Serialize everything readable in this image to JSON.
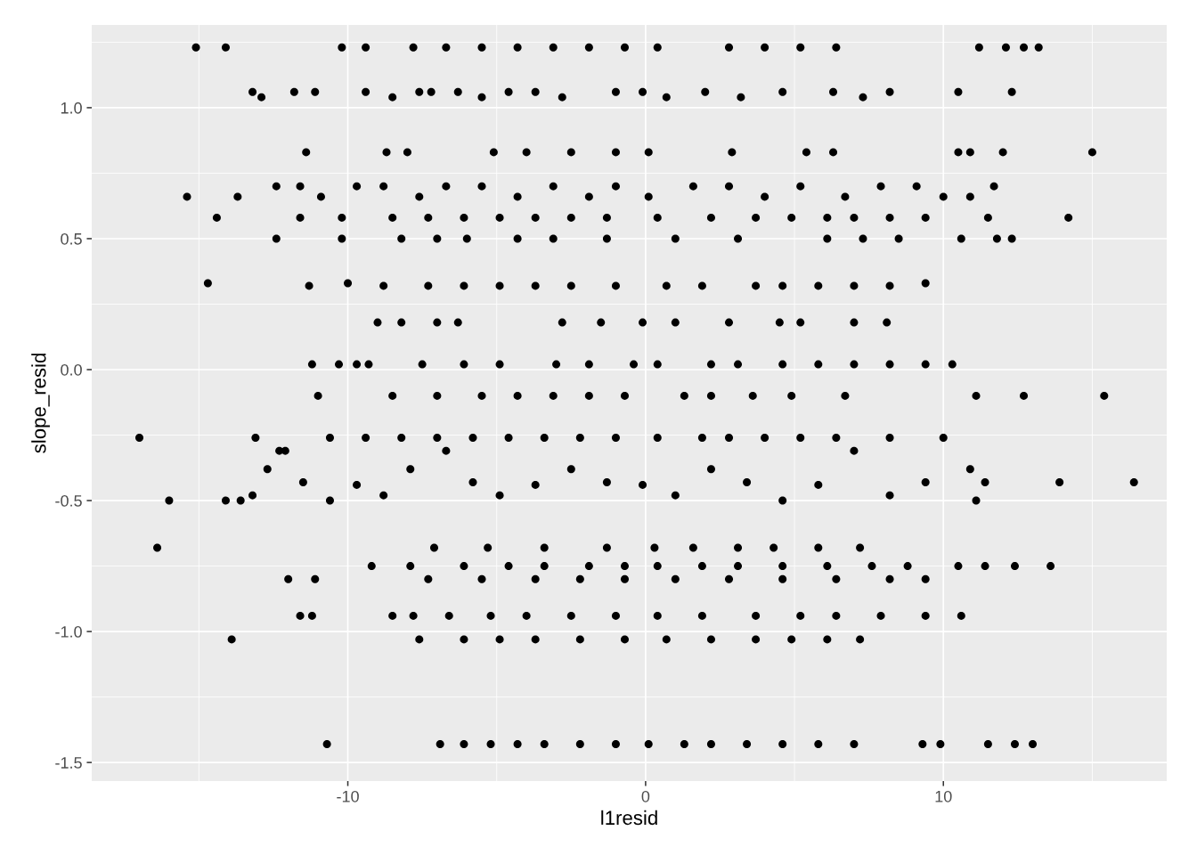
{
  "chart_data": {
    "type": "scatter",
    "xlabel": "l1resid",
    "ylabel": "slope_resid",
    "xlim": [
      -18.6,
      17.5
    ],
    "ylim": [
      -1.571,
      1.316
    ],
    "xticks": [
      {
        "value": -15,
        "label": null
      },
      {
        "value": -10,
        "label": "-10"
      },
      {
        "value": -5,
        "label": null
      },
      {
        "value": 0,
        "label": "0"
      },
      {
        "value": 5,
        "label": null
      },
      {
        "value": 10,
        "label": "10"
      },
      {
        "value": 15,
        "label": null
      }
    ],
    "yticks": [
      {
        "value": -1.5,
        "label": "-1.5"
      },
      {
        "value": -1.25,
        "label": null
      },
      {
        "value": -1.0,
        "label": "-1.0"
      },
      {
        "value": -0.75,
        "label": null
      },
      {
        "value": -0.5,
        "label": "-0.5"
      },
      {
        "value": -0.25,
        "label": null
      },
      {
        "value": 0.0,
        "label": "0.0"
      },
      {
        "value": 0.25,
        "label": null
      },
      {
        "value": 0.5,
        "label": "0.5"
      },
      {
        "value": 0.75,
        "label": null
      },
      {
        "value": 1.0,
        "label": "1.0"
      },
      {
        "value": 1.25,
        "label": null
      }
    ],
    "grid": true,
    "marker": "circle",
    "series": [
      {
        "color": "#000000",
        "x": [
          -15.1,
          -14.1,
          -10.2,
          -9.4,
          -7.8,
          -6.7,
          -5.5,
          -4.3,
          -3.1,
          -1.9,
          -0.7,
          0.4,
          2.8,
          4.0,
          5.2,
          6.4,
          11.2,
          12.1,
          12.7,
          13.2,
          -13.2,
          -12.9,
          -11.8,
          -11.1,
          -9.4,
          -8.5,
          -7.6,
          -7.2,
          -6.3,
          -5.5,
          -4.6,
          -3.7,
          -2.8,
          -1.0,
          -0.1,
          0.7,
          2.0,
          3.2,
          4.6,
          6.3,
          7.3,
          8.2,
          10.5,
          12.3,
          -11.4,
          -8.7,
          -8.0,
          -5.1,
          -4.0,
          -2.5,
          -1.0,
          0.1,
          2.9,
          5.4,
          6.3,
          10.5,
          10.9,
          12.0,
          15.0,
          -15.4,
          -13.7,
          -12.4,
          -11.6,
          -10.9,
          -9.7,
          -8.8,
          -7.6,
          -6.7,
          -5.5,
          -4.3,
          -3.1,
          -1.9,
          -1.0,
          0.1,
          1.6,
          2.8,
          4.0,
          5.2,
          6.7,
          7.9,
          9.1,
          10.0,
          10.9,
          11.7,
          -14.4,
          -11.6,
          -10.2,
          -8.5,
          -7.3,
          -6.1,
          -4.9,
          -3.7,
          -2.5,
          -1.3,
          0.4,
          2.2,
          3.7,
          4.9,
          6.1,
          7.0,
          8.2,
          9.4,
          11.5,
          14.2,
          -12.4,
          -10.2,
          -8.2,
          -7.0,
          -6.0,
          -4.3,
          -3.1,
          -1.3,
          1.0,
          3.1,
          6.1,
          7.3,
          8.5,
          10.6,
          11.8,
          12.3,
          -14.7,
          -11.3,
          -10.0,
          -8.8,
          -7.3,
          -6.1,
          -4.9,
          -3.7,
          -2.5,
          -1.0,
          0.7,
          1.9,
          3.7,
          4.6,
          5.8,
          7.0,
          8.2,
          9.4,
          -9.0,
          -8.2,
          -7.0,
          -6.3,
          -2.8,
          -1.5,
          -0.1,
          1.0,
          2.8,
          4.5,
          5.2,
          7.0,
          8.1,
          -11.2,
          -10.3,
          -9.7,
          -9.3,
          -7.5,
          -6.1,
          -4.9,
          -3.0,
          -1.9,
          -0.4,
          0.4,
          2.2,
          3.1,
          4.6,
          5.8,
          7.0,
          8.2,
          9.4,
          10.3,
          -11.0,
          -8.5,
          -7.0,
          -5.5,
          -4.3,
          -3.1,
          -1.9,
          -0.7,
          1.3,
          2.2,
          3.6,
          4.9,
          6.7,
          11.1,
          12.7,
          15.4,
          -17.0,
          -13.1,
          -12.3,
          -10.6,
          -9.4,
          -8.2,
          -7.0,
          -5.8,
          -4.6,
          -3.4,
          -2.2,
          -1.0,
          0.4,
          1.9,
          2.8,
          4.0,
          5.2,
          6.4,
          8.2,
          10.0,
          -16.0,
          -14.1,
          -13.6,
          -13.2,
          -12.7,
          -12.1,
          -11.5,
          -10.6,
          -9.7,
          -8.8,
          -7.9,
          -6.7,
          -5.8,
          -4.9,
          -3.7,
          -2.5,
          -1.3,
          -0.1,
          1.0,
          2.2,
          3.4,
          4.6,
          5.8,
          7.0,
          8.2,
          9.4,
          10.9,
          11.4,
          11.1,
          13.9,
          16.4,
          -16.4,
          -7.1,
          -5.3,
          -3.4,
          -1.3,
          0.3,
          1.6,
          3.1,
          4.3,
          5.8,
          7.2,
          -9.2,
          -7.9,
          -6.1,
          -4.6,
          -3.4,
          -1.9,
          -0.7,
          0.4,
          1.9,
          3.1,
          4.6,
          6.1,
          7.6,
          8.8,
          10.5,
          11.4,
          12.4,
          13.6,
          -12.0,
          -11.1,
          -7.3,
          -5.5,
          -3.7,
          -2.2,
          -0.7,
          1.0,
          2.8,
          4.6,
          6.4,
          8.2,
          9.4,
          -11.6,
          -11.2,
          -8.5,
          -7.8,
          -6.6,
          -5.2,
          -4.0,
          -2.5,
          -1.0,
          0.4,
          1.9,
          3.7,
          5.2,
          6.4,
          7.9,
          9.4,
          10.6,
          -13.9,
          -7.6,
          -6.1,
          -4.9,
          -3.7,
          -2.2,
          -0.7,
          0.7,
          2.2,
          3.7,
          4.9,
          6.1,
          7.2,
          -10.7,
          -6.9,
          -6.1,
          -5.2,
          -4.3,
          -3.4,
          -2.2,
          -1.0,
          0.1,
          1.3,
          2.2,
          3.4,
          4.6,
          5.8,
          7.0,
          9.3,
          9.9,
          11.5,
          12.4,
          13.0
        ],
        "values": [
          1.23,
          1.23,
          1.23,
          1.23,
          1.23,
          1.23,
          1.23,
          1.23,
          1.23,
          1.23,
          1.23,
          1.23,
          1.23,
          1.23,
          1.23,
          1.23,
          1.23,
          1.23,
          1.23,
          1.23,
          1.06,
          1.04,
          1.06,
          1.06,
          1.06,
          1.04,
          1.06,
          1.06,
          1.06,
          1.04,
          1.06,
          1.06,
          1.04,
          1.06,
          1.06,
          1.04,
          1.06,
          1.04,
          1.06,
          1.06,
          1.04,
          1.06,
          1.06,
          1.06,
          0.83,
          0.83,
          0.83,
          0.83,
          0.83,
          0.83,
          0.83,
          0.83,
          0.83,
          0.83,
          0.83,
          0.83,
          0.83,
          0.83,
          0.83,
          0.66,
          0.66,
          0.7,
          0.7,
          0.66,
          0.7,
          0.7,
          0.66,
          0.7,
          0.7,
          0.66,
          0.7,
          0.66,
          0.7,
          0.66,
          0.7,
          0.7,
          0.66,
          0.7,
          0.66,
          0.7,
          0.7,
          0.66,
          0.66,
          0.7,
          0.58,
          0.58,
          0.58,
          0.58,
          0.58,
          0.58,
          0.58,
          0.58,
          0.58,
          0.58,
          0.58,
          0.58,
          0.58,
          0.58,
          0.58,
          0.58,
          0.58,
          0.58,
          0.58,
          0.58,
          0.5,
          0.5,
          0.5,
          0.5,
          0.5,
          0.5,
          0.5,
          0.5,
          0.5,
          0.5,
          0.5,
          0.5,
          0.5,
          0.5,
          0.5,
          0.5,
          0.33,
          0.32,
          0.33,
          0.32,
          0.32,
          0.32,
          0.32,
          0.32,
          0.32,
          0.32,
          0.32,
          0.32,
          0.32,
          0.32,
          0.32,
          0.32,
          0.32,
          0.33,
          0.18,
          0.18,
          0.18,
          0.18,
          0.18,
          0.18,
          0.18,
          0.18,
          0.18,
          0.18,
          0.18,
          0.18,
          0.18,
          0.02,
          0.02,
          0.02,
          0.02,
          0.02,
          0.02,
          0.02,
          0.02,
          0.02,
          0.02,
          0.02,
          0.02,
          0.02,
          0.02,
          0.02,
          0.02,
          0.02,
          0.02,
          0.02,
          -0.1,
          -0.1,
          -0.1,
          -0.1,
          -0.1,
          -0.1,
          -0.1,
          -0.1,
          -0.1,
          -0.1,
          -0.1,
          -0.1,
          -0.1,
          -0.1,
          -0.1,
          -0.1,
          -0.26,
          -0.26,
          -0.31,
          -0.26,
          -0.26,
          -0.26,
          -0.26,
          -0.26,
          -0.26,
          -0.26,
          -0.26,
          -0.26,
          -0.26,
          -0.26,
          -0.26,
          -0.26,
          -0.26,
          -0.26,
          -0.26,
          -0.26,
          -0.5,
          -0.5,
          -0.5,
          -0.48,
          -0.38,
          -0.31,
          -0.43,
          -0.5,
          -0.44,
          -0.48,
          -0.38,
          -0.31,
          -0.43,
          -0.48,
          -0.44,
          -0.38,
          -0.43,
          -0.44,
          -0.48,
          -0.38,
          -0.43,
          -0.5,
          -0.44,
          -0.31,
          -0.48,
          -0.43,
          -0.38,
          -0.43,
          -0.5,
          -0.43,
          -0.43,
          -0.68,
          -0.68,
          -0.68,
          -0.68,
          -0.68,
          -0.68,
          -0.68,
          -0.68,
          -0.68,
          -0.68,
          -0.68,
          -0.75,
          -0.75,
          -0.75,
          -0.75,
          -0.75,
          -0.75,
          -0.75,
          -0.75,
          -0.75,
          -0.75,
          -0.75,
          -0.75,
          -0.75,
          -0.75,
          -0.75,
          -0.75,
          -0.75,
          -0.75,
          -0.8,
          -0.8,
          -0.8,
          -0.8,
          -0.8,
          -0.8,
          -0.8,
          -0.8,
          -0.8,
          -0.8,
          -0.8,
          -0.8,
          -0.8,
          -0.94,
          -0.94,
          -0.94,
          -0.94,
          -0.94,
          -0.94,
          -0.94,
          -0.94,
          -0.94,
          -0.94,
          -0.94,
          -0.94,
          -0.94,
          -0.94,
          -0.94,
          -0.94,
          -0.94,
          -1.03,
          -1.03,
          -1.03,
          -1.03,
          -1.03,
          -1.03,
          -1.03,
          -1.03,
          -1.03,
          -1.03,
          -1.03,
          -1.03,
          -1.03,
          -1.43,
          -1.43,
          -1.43,
          -1.43,
          -1.43,
          -1.43,
          -1.43,
          -1.43,
          -1.43,
          -1.43,
          -1.43,
          -1.43,
          -1.43,
          -1.43,
          -1.43,
          -1.43,
          -1.43,
          -1.43,
          -1.43,
          -1.43
        ]
      }
    ]
  }
}
